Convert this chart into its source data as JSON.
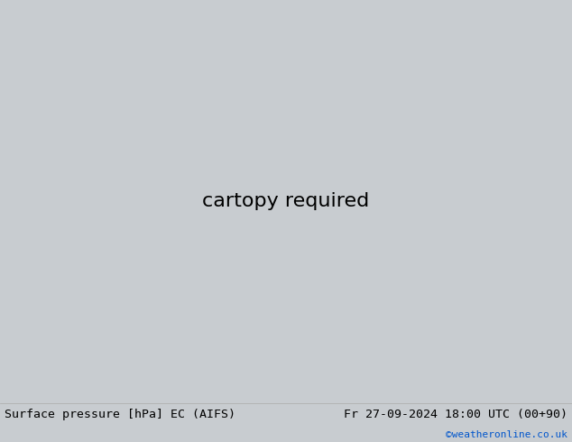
{
  "title_left": "Surface pressure [hPa] EC (AIFS)",
  "title_right": "Fr 27-09-2024 18:00 UTC (00+90)",
  "credit": "©weatheronline.co.uk",
  "ocean_color": "#c8ccd0",
  "land_color": "#b8dfa8",
  "border_color": "#888888",
  "fig_width": 6.34,
  "fig_height": 4.9,
  "dpi": 100,
  "bottom_bar_color": "#e8e8e8",
  "text_color": "#000000",
  "credit_color": "#0055cc",
  "lon_min": -20,
  "lon_max": 65,
  "lat_min": -40,
  "lat_max": 42
}
